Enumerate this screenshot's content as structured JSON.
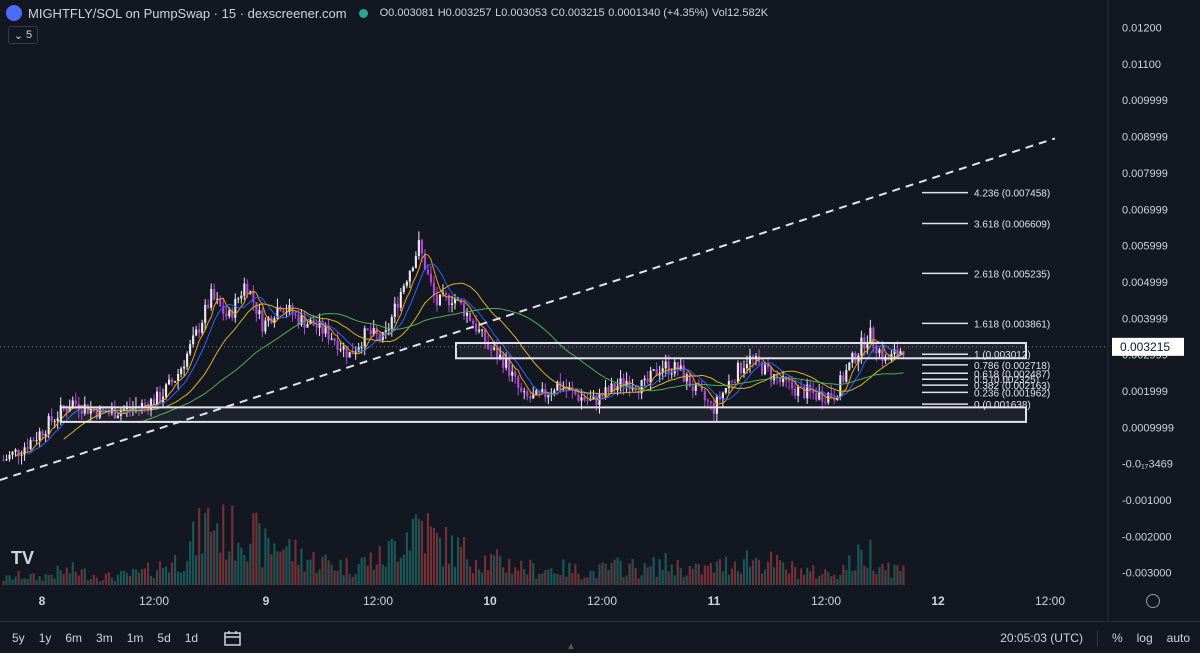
{
  "header": {
    "title": "MIGHTFLY/SOL on PumpSwap · 15 · dexscreener.com",
    "open": "O0.003081",
    "high": "H0.003257",
    "low": "L0.003053",
    "close": "C0.003215",
    "change": "0.0001340 (+4.35%)",
    "volume": "Vol12.582K",
    "interval_button": "5"
  },
  "chart_data": {
    "type": "candlestick",
    "title": "",
    "x_ticks": [
      "8",
      "12:00",
      "9",
      "12:00",
      "10",
      "12:00",
      "11",
      "12:00",
      "12",
      "12:00"
    ],
    "y_ticks": [
      "0.01200",
      "0.01100",
      "0.009999",
      "0.008999",
      "0.007999",
      "0.006999",
      "0.005999",
      "0.004999",
      "0.003999",
      "0.002999",
      "0.001999",
      "0.0009999",
      "-0.0₁7₀₉₁3469",
      "-0.001000",
      "-0.002000",
      "-0.003000"
    ],
    "y_ticks_display": [
      "0.01200",
      "0.01100",
      "0.009999",
      "0.008999",
      "0.007999",
      "0.006999",
      "0.005999",
      "0.004999",
      "0.003999",
      "0.002999",
      "0.001999",
      "0.0009999",
      "-0.0₁₇3469",
      "-0.001000",
      "-0.002000",
      "-0.003000"
    ],
    "ylim": [
      -0.0032,
      0.0124
    ],
    "last_price": "0.003215",
    "last_price_value": 0.003215,
    "fib_levels": [
      {
        "label": "4.236 (0.007458)",
        "value": 0.007458
      },
      {
        "label": "3.618 (0.006609)",
        "value": 0.006609
      },
      {
        "label": "2.618 (0.005235)",
        "value": 0.005235
      },
      {
        "label": "1.618 (0.003861)",
        "value": 0.003861
      },
      {
        "label": "1 (0.003012)",
        "value": 0.003012
      },
      {
        "label": "0.786 (0.002718)",
        "value": 0.002718
      },
      {
        "label": "0.618 (0.002487)",
        "value": 0.002487
      },
      {
        "label": "0.5 (0.002325)",
        "value": 0.002325
      },
      {
        "label": "0.382 (0.002163)",
        "value": 0.002163
      },
      {
        "label": "0.236 (0.001962)",
        "value": 0.001962
      },
      {
        "label": "0 (0.001638)",
        "value": 0.001638
      }
    ],
    "price_path": [
      0.0001,
      0.0004,
      0.0008,
      0.0013,
      0.0017,
      0.0015,
      0.0014,
      0.0015,
      0.0016,
      0.0018,
      0.0024,
      0.0034,
      0.0046,
      0.004,
      0.005,
      0.0038,
      0.0044,
      0.004,
      0.0038,
      0.0035,
      0.003,
      0.0036,
      0.0034,
      0.0048,
      0.006,
      0.0044,
      0.0046,
      0.004,
      0.0032,
      0.0028,
      0.0018,
      0.0018,
      0.0022,
      0.0019,
      0.0017,
      0.002,
      0.0023,
      0.0021,
      0.0027,
      0.0026,
      0.002,
      0.0015,
      0.0023,
      0.0029,
      0.0026,
      0.0022,
      0.002,
      0.0019,
      0.0019,
      0.0028,
      0.0036,
      0.0028,
      0.0032
    ],
    "volume_path": [
      0.05,
      0.08,
      0.06,
      0.1,
      0.12,
      0.09,
      0.07,
      0.08,
      0.1,
      0.15,
      0.2,
      0.35,
      0.55,
      0.4,
      0.5,
      0.3,
      0.35,
      0.25,
      0.2,
      0.18,
      0.15,
      0.2,
      0.22,
      0.4,
      0.55,
      0.35,
      0.3,
      0.25,
      0.2,
      0.18,
      0.15,
      0.12,
      0.14,
      0.12,
      0.1,
      0.14,
      0.16,
      0.12,
      0.18,
      0.15,
      0.12,
      0.14,
      0.18,
      0.22,
      0.2,
      0.15,
      0.12,
      0.1,
      0.1,
      0.18,
      0.28,
      0.16,
      0.12
    ]
  },
  "time_display": "20:05:03 (UTC)",
  "bottom_bar": {
    "ranges": [
      "5y",
      "1y",
      "6m",
      "3m",
      "1m",
      "5d",
      "1d"
    ],
    "percent": "%",
    "log": "log",
    "auto": "auto"
  },
  "branding": "TV",
  "colors": {
    "background": "#131722",
    "candle_up": "#e9e9ee",
    "candle_down": "#b24ad6",
    "ma_blue": "#2962ff",
    "ma_yellow": "#d6b31f",
    "ma_green": "#4caf50",
    "ma_orange": "#f59e0b"
  }
}
